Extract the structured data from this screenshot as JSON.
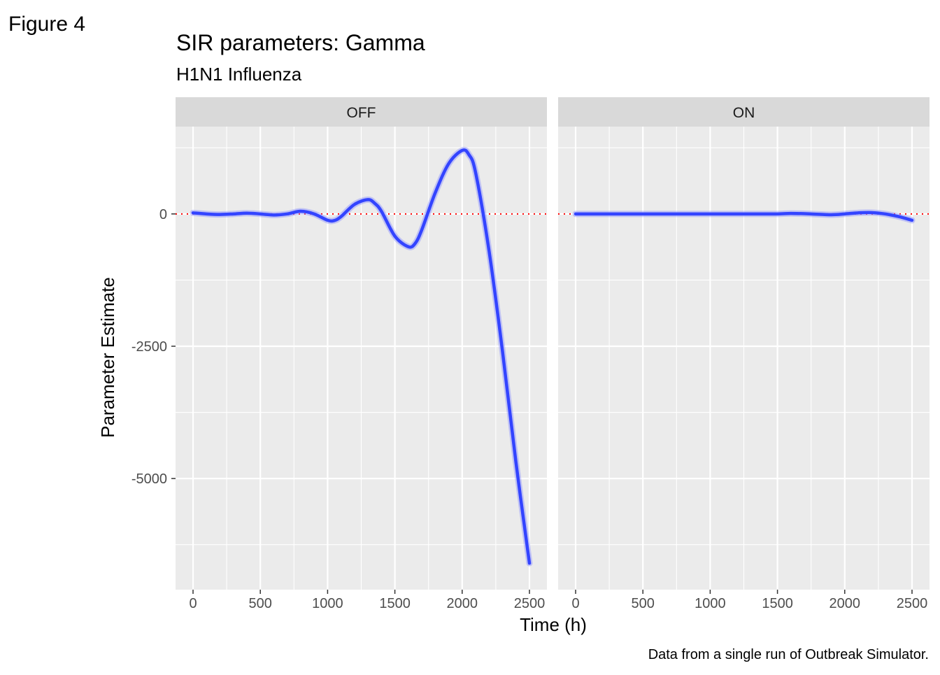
{
  "figure_label": "Figure 4",
  "chart_data": {
    "type": "line",
    "title": "SIR parameters: Gamma",
    "subtitle": "H1N1 Influenza",
    "xlabel": "Time (h)",
    "ylabel": "Parameter Estimate",
    "caption": "Data from a single run of Outbreak Simulator.",
    "xlim": [
      -130,
      2630
    ],
    "ylim": [
      -7100,
      1650
    ],
    "x_ticks": [
      0,
      500,
      1000,
      1500,
      2000,
      2500
    ],
    "x_tick_labels": [
      "0",
      "500",
      "1000",
      "1500",
      "2000",
      "2500"
    ],
    "y_ticks": [
      0,
      -2500,
      -5000
    ],
    "y_tick_labels": [
      "0",
      "-2500",
      "-5000"
    ],
    "reference_line": {
      "y": 0,
      "style": "dotted",
      "color": "#ff0000"
    },
    "line_color": "#3344ff",
    "grid": true,
    "panels": [
      {
        "label": "OFF",
        "x": [
          0,
          100,
          200,
          300,
          400,
          500,
          600,
          700,
          800,
          900,
          1000,
          1050,
          1100,
          1200,
          1300,
          1350,
          1400,
          1500,
          1600,
          1650,
          1700,
          1800,
          1900,
          2000,
          2050,
          2100,
          2200,
          2300,
          2400,
          2500
        ],
        "y": [
          20,
          0,
          -10,
          0,
          15,
          0,
          -20,
          0,
          50,
          0,
          -120,
          -125,
          -50,
          180,
          270,
          200,
          50,
          -420,
          -620,
          -560,
          -300,
          400,
          950,
          1200,
          1120,
          780,
          -700,
          -2600,
          -4700,
          -6600
        ]
      },
      {
        "label": "ON",
        "x": [
          0,
          250,
          500,
          750,
          1000,
          1250,
          1500,
          1600,
          1750,
          1900,
          2000,
          2100,
          2200,
          2300,
          2400,
          2500
        ],
        "y": [
          0,
          0,
          0,
          0,
          0,
          0,
          0,
          10,
          0,
          -15,
          0,
          20,
          25,
          0,
          -50,
          -120
        ]
      }
    ]
  }
}
